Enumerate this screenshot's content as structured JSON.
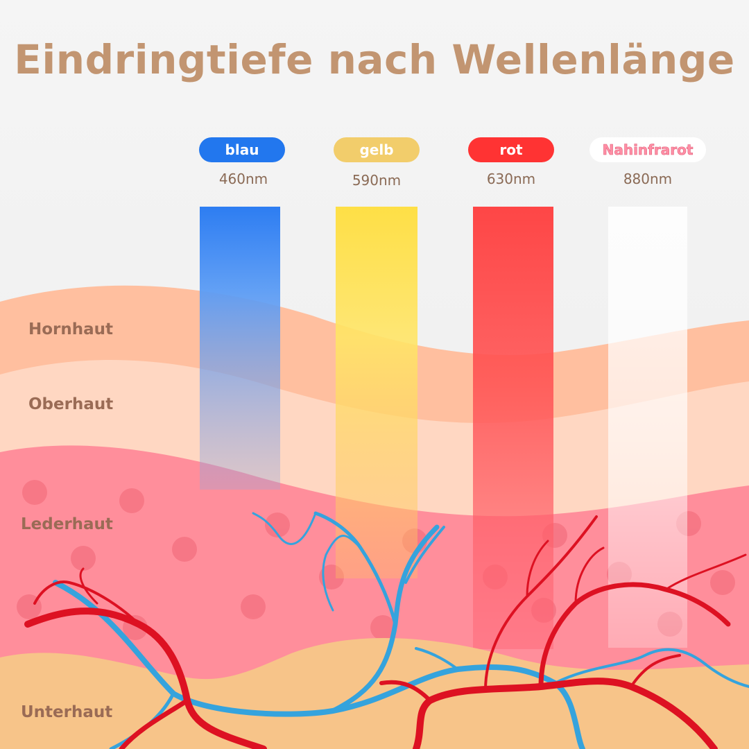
{
  "title": "Eindringtiefe nach Wellenlänge",
  "wavelengths": [
    {
      "name": "blau",
      "nm": "460nm",
      "color": "#2277ee"
    },
    {
      "name": "gelb",
      "nm": "590nm",
      "color": "#f2cd6b"
    },
    {
      "name": "rot",
      "nm": "630nm",
      "color": "#ff3333"
    },
    {
      "name": "Nahinfrarot",
      "nm": "880nm",
      "color": "#ffffff"
    }
  ],
  "layers": [
    "Hornhaut",
    "Oberhaut",
    "Lederhaut",
    "Unterhaut"
  ],
  "colors": {
    "title": "#c29571",
    "hornhaut": "#ffbf9f",
    "oberhaut": "#ffd7c2",
    "lederhaut": "#ff8e9b",
    "unterhaut": "#f7c489",
    "artery": "#dd1122",
    "vein": "#35a3dd",
    "label": "#9a6b55"
  }
}
